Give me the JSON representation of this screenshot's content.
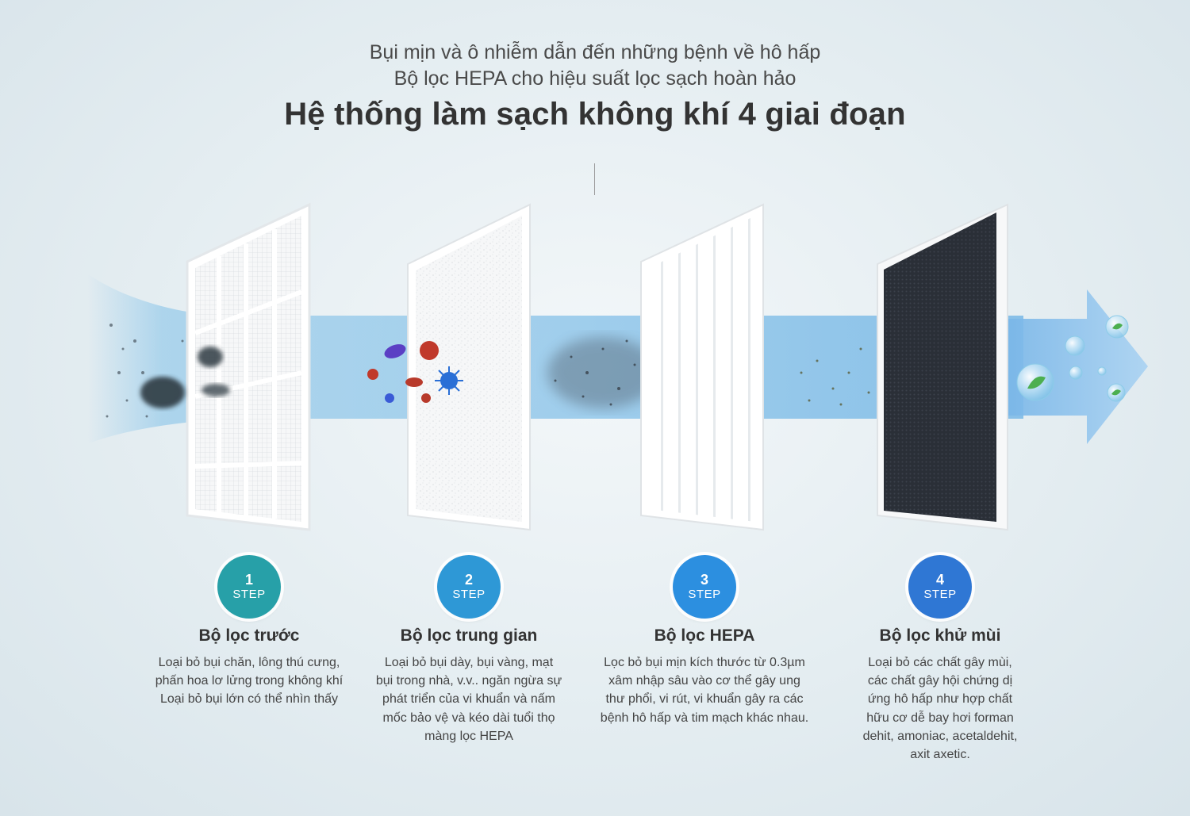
{
  "header": {
    "line1": "Bụi mịn và ô nhiễm dẫn đến những bệnh về hô hấp",
    "line2": "Bộ lọc HEPA cho hiệu suất lọc sạch hoàn hảo",
    "title": "Hệ thống làm sạch không khí 4 giai đoạn"
  },
  "steps": [
    {
      "number": "1",
      "label": "STEP",
      "color": "#27a0a8",
      "title": "Bộ lọc trước",
      "lines": [
        "Loại bỏ bụi chăn, lông thú cưng,",
        "phấn hoa lơ lửng trong không khí",
        "Loại bỏ bụi lớn có thể nhìn thấy"
      ]
    },
    {
      "number": "2",
      "label": "STEP",
      "color": "#2e98d6",
      "title": "Bộ lọc trung gian",
      "lines": [
        "Loại bỏ bụi dày, bụi vàng, mạt",
        "bụi trong nhà, v.v.. ngăn ngừa sự",
        "phát triển của vi khuẩn và nấm",
        "mốc  bảo vệ và kéo dài tuổi thọ",
        "màng lọc HEPA"
      ]
    },
    {
      "number": "3",
      "label": "STEP",
      "color": "#2c8fe0",
      "title": "Bộ lọc HEPA",
      "lines": [
        "Lọc bỏ bụi mịn kích thước từ 0.3µm",
        "xâm nhập sâu vào cơ thể gây ung",
        "thư phổi, vi rút, vi khuẩn gây ra các",
        "bệnh hô hấp và tim mạch khác nhau."
      ]
    },
    {
      "number": "4",
      "label": "STEP",
      "color": "#2f77d4",
      "title": "Bộ lọc khử mùi",
      "lines": [
        "Loại bỏ các chất gây mùi,",
        "các chất gây hội chứng dị",
        "ứng hô hấp như hợp chất",
        "hữu cơ dễ bay hơi forman",
        "dehit, amoniac, acetaldehit,",
        "axit axetic."
      ]
    }
  ],
  "icons": [
    "pre-filter-icon",
    "intermediate-filter-icon",
    "hepa-filter-icon",
    "carbon-filter-icon",
    "airflow-arrow-icon",
    "dust-cloud-icon",
    "bacteria-icon",
    "fine-dust-icon",
    "clean-air-bubble-icon"
  ]
}
